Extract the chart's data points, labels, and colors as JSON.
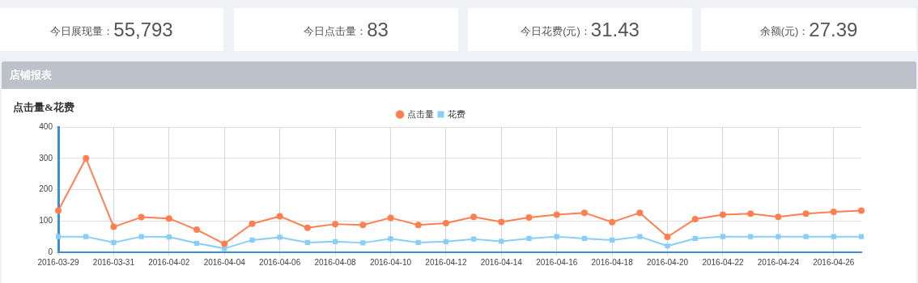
{
  "chart_data": [
    {
      "type": "other",
      "annotations": [
        "今日展现量：",
        "55,793",
        "今日点击量：",
        "83",
        "今日花费(元)：",
        "31.43",
        "余额(元)：",
        "27.39",
        "店铺报表"
      ]
    },
    {
      "type": "line",
      "title": "点击量&花费",
      "categories": [
        "2016-03-29",
        null,
        "2016-03-31",
        null,
        "2016-04-02",
        null,
        "2016-04-04",
        null,
        "2016-04-06",
        null,
        "2016-04-08",
        null,
        "2016-04-10",
        null,
        "2016-04-12",
        null,
        "2016-04-14",
        null,
        "2016-04-16",
        null,
        "2016-04-18",
        null,
        "2016-04-20",
        null,
        "2016-04-22",
        null,
        "2016-04-24",
        null,
        "2016-04-26",
        null
      ],
      "series": [
        {
          "name": "点击量",
          "color": "#ff7f50",
          "marker": "circle",
          "values": [
            133,
            300,
            81,
            112,
            108,
            72,
            27,
            91,
            115,
            78,
            90,
            87,
            110,
            87,
            93,
            113,
            97,
            111,
            120,
            126,
            96,
            126,
            49,
            106,
            120,
            123,
            113,
            123,
            129,
            133
          ]
        },
        {
          "name": "花费",
          "color": "#87cefa",
          "marker": "square",
          "values": [
            50,
            50,
            31,
            50,
            49,
            29,
            12,
            39,
            48,
            31,
            34,
            30,
            43,
            31,
            34,
            42,
            35,
            44,
            50,
            44,
            39,
            50,
            20,
            44,
            50,
            50,
            50,
            50,
            50,
            50
          ]
        }
      ],
      "ylim": [
        0,
        400
      ],
      "yticks": [
        0,
        100,
        200,
        300,
        400
      ],
      "grid": true,
      "legend": "top"
    }
  ]
}
